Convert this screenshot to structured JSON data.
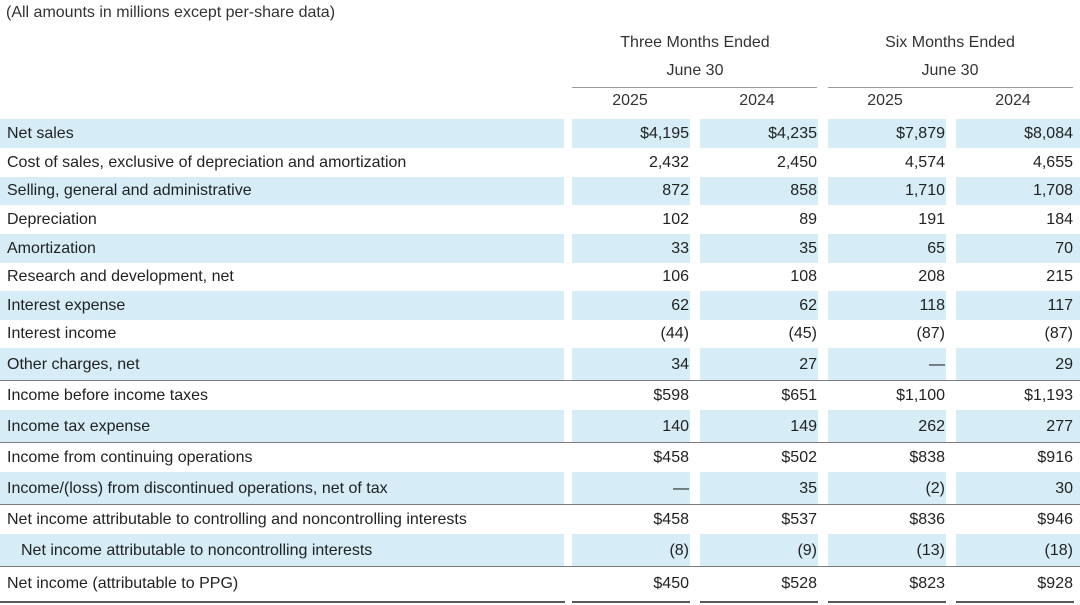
{
  "note": "(All amounts in millions except per-share data)",
  "header": {
    "three_months_line1": "Three Months Ended",
    "three_months_line2": "June 30",
    "six_months_line1": "Six Months Ended",
    "six_months_line2": "June 30",
    "years": [
      "2025",
      "2024",
      "2025",
      "2024"
    ]
  },
  "rows": [
    {
      "label": "Net sales",
      "values": [
        "$4,195",
        "$4,235",
        "$7,879",
        "$8,084"
      ],
      "shaded": true
    },
    {
      "label": "Cost of sales, exclusive of depreciation and amortization",
      "values": [
        "2,432",
        "2,450",
        "4,574",
        "4,655"
      ],
      "shaded": false
    },
    {
      "label": "Selling, general and administrative",
      "values": [
        "872",
        "858",
        "1,710",
        "1,708"
      ],
      "shaded": true
    },
    {
      "label": "Depreciation",
      "values": [
        "102",
        "89",
        "191",
        "184"
      ],
      "shaded": false
    },
    {
      "label": "Amortization",
      "values": [
        "33",
        "35",
        "65",
        "70"
      ],
      "shaded": true
    },
    {
      "label": "Research and development, net",
      "values": [
        "106",
        "108",
        "208",
        "215"
      ],
      "shaded": false
    },
    {
      "label": "Interest expense",
      "values": [
        "62",
        "62",
        "118",
        "117"
      ],
      "shaded": true
    },
    {
      "label": "Interest income",
      "values": [
        "(44)",
        "(45)",
        "(87)",
        "(87)"
      ],
      "shaded": false
    },
    {
      "label": "Other charges, net",
      "values": [
        "34",
        "27",
        "—",
        "29"
      ],
      "shaded": true
    },
    {
      "label": "Income before income taxes",
      "values": [
        "$598",
        "$651",
        "$1,100",
        "$1,193"
      ],
      "shaded": false
    },
    {
      "label": "Income tax expense",
      "values": [
        "140",
        "149",
        "262",
        "277"
      ],
      "shaded": true
    },
    {
      "label": "Income from continuing operations",
      "values": [
        "$458",
        "$502",
        "$838",
        "$916"
      ],
      "shaded": false
    },
    {
      "label": "Income/(loss) from discontinued operations, net of tax",
      "values": [
        "—",
        "35",
        "(2)",
        "30"
      ],
      "shaded": true
    },
    {
      "label": "Net income attributable to controlling and noncontrolling interests",
      "values": [
        "$458",
        "$537",
        "$836",
        "$946"
      ],
      "shaded": false
    },
    {
      "label": "Net income attributable to noncontrolling interests",
      "values": [
        "(8)",
        "(9)",
        "(13)",
        "(18)"
      ],
      "shaded": true,
      "indent": true
    },
    {
      "label": "Net income (attributable to PPG)",
      "values": [
        "$450",
        "$528",
        "$823",
        "$928"
      ],
      "shaded": false
    }
  ]
}
